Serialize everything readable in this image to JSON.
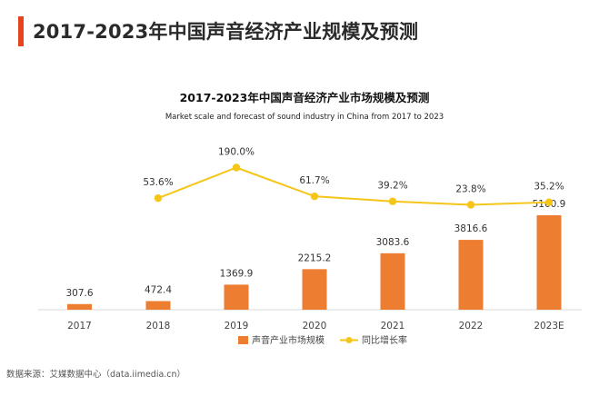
{
  "page": {
    "title": "2017-2023年中国声音经济产业规模及预测",
    "source": "数据来源：艾媒数据中心（data.iimedia.cn）",
    "accent_color": "#e8431f"
  },
  "chart_data": {
    "type": "bar",
    "title": "2017-2023年中国声音经济产业市场规模及预测",
    "subtitle": "Market scale and forecast of sound industry in China from 2017 to 2023",
    "categories": [
      "2017",
      "2018",
      "2019",
      "2020",
      "2021",
      "2022",
      "2023E"
    ],
    "series": [
      {
        "name": "声音产业市场规模",
        "type": "bar",
        "color": "#ed7d31",
        "values": [
          307.6,
          472.4,
          1369.9,
          2215.2,
          3083.6,
          3816.6,
          5160.9
        ],
        "labels": [
          "307.6",
          "472.4",
          "1369.9",
          "2215.2",
          "3083.6",
          "3816.6",
          "5160.9"
        ]
      },
      {
        "name": "同比增长率",
        "type": "line",
        "color": "#f5c518",
        "values": [
          null,
          53.6,
          190.0,
          61.7,
          39.2,
          23.8,
          35.2
        ],
        "labels": [
          "",
          "53.6%",
          "190.0%",
          "61.7%",
          "39.2%",
          "23.8%",
          "35.2%"
        ]
      }
    ],
    "legend_position": "bottom",
    "grid": false
  }
}
